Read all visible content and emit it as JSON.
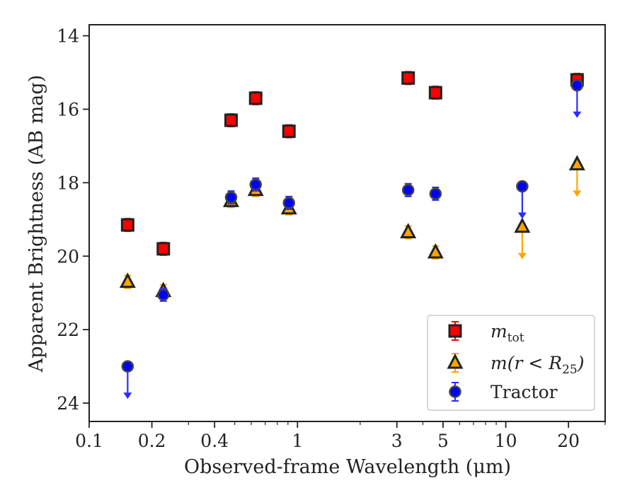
{
  "chart_data": {
    "type": "scatter",
    "xlabel": "Observed-frame Wavelength (μm)",
    "ylabel": "Apparent Brightness (AB mag)",
    "xscale": "log",
    "xlim": [
      0.1,
      30
    ],
    "ylim": [
      24.5,
      13.7
    ],
    "y_inverted": true,
    "xticks": [
      {
        "value": 0.1,
        "label": "0.1"
      },
      {
        "value": 0.2,
        "label": "0.2"
      },
      {
        "value": 0.4,
        "label": "0.4"
      },
      {
        "value": 1,
        "label": "1"
      },
      {
        "value": 3,
        "label": "3"
      },
      {
        "value": 5,
        "label": "5"
      },
      {
        "value": 10,
        "label": "10"
      },
      {
        "value": 20,
        "label": "20"
      }
    ],
    "yticks": [
      {
        "value": 14,
        "label": "14"
      },
      {
        "value": 16,
        "label": "16"
      },
      {
        "value": 18,
        "label": "18"
      },
      {
        "value": 20,
        "label": "20"
      },
      {
        "value": 22,
        "label": "22"
      },
      {
        "value": 24,
        "label": "24"
      }
    ],
    "grid": false,
    "legend_position": "lower-right",
    "series": [
      {
        "name": "m_tot",
        "label_main": "m",
        "label_sub": "tot",
        "marker": "square",
        "color": "#ff0000",
        "errcolor": "#ff0000",
        "points": [
          {
            "x": 0.153,
            "y": 19.15
          },
          {
            "x": 0.227,
            "y": 19.8
          },
          {
            "x": 0.48,
            "y": 16.3
          },
          {
            "x": 0.63,
            "y": 15.7
          },
          {
            "x": 0.91,
            "y": 16.6
          },
          {
            "x": 3.4,
            "y": 15.15
          },
          {
            "x": 4.6,
            "y": 15.55
          },
          {
            "x": 22,
            "y": 15.2
          }
        ]
      },
      {
        "name": "m(r < R25)",
        "label_main": "m(r < R",
        "label_sub": "25",
        "label_end": ")",
        "marker": "triangle",
        "color": "#ffa500",
        "errcolor": "#ffa500",
        "points": [
          {
            "x": 0.153,
            "y": 20.7
          },
          {
            "x": 0.227,
            "y": 20.95
          },
          {
            "x": 0.48,
            "y": 18.5
          },
          {
            "x": 0.63,
            "y": 18.2
          },
          {
            "x": 0.91,
            "y": 18.7
          },
          {
            "x": 3.4,
            "y": 19.35
          },
          {
            "x": 4.6,
            "y": 19.9
          },
          {
            "x": 12,
            "y": 19.2,
            "upper_limit": true
          },
          {
            "x": 22,
            "y": 17.5,
            "upper_limit": true
          }
        ]
      },
      {
        "name": "Tractor",
        "label_main": "Tractor",
        "marker": "circle",
        "color": "#0000ff",
        "errcolor": "#2b2bff",
        "points": [
          {
            "x": 0.153,
            "y": 23.0,
            "upper_limit": true
          },
          {
            "x": 0.227,
            "y": 21.05
          },
          {
            "x": 0.48,
            "y": 18.4
          },
          {
            "x": 0.63,
            "y": 18.05
          },
          {
            "x": 0.91,
            "y": 18.55
          },
          {
            "x": 3.4,
            "y": 18.2
          },
          {
            "x": 4.6,
            "y": 18.3
          },
          {
            "x": 12,
            "y": 18.1,
            "upper_limit": true
          },
          {
            "x": 22,
            "y": 15.35,
            "upper_limit": true
          }
        ]
      }
    ]
  }
}
